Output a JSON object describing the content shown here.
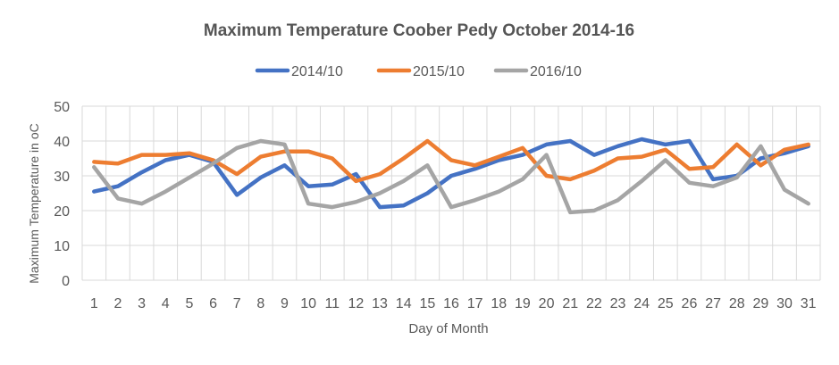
{
  "chart_data": {
    "type": "line",
    "title": "Maximum Temperature Coober Pedy October 2014-16",
    "xlabel": "Day of Month",
    "ylabel": "Maximum Temperature in oC",
    "ylim": [
      0,
      50
    ],
    "yticks": [
      0,
      10,
      20,
      30,
      40,
      50
    ],
    "grid": true,
    "legend": "top",
    "categories": [
      "1",
      "2",
      "3",
      "4",
      "5",
      "6",
      "7",
      "8",
      "9",
      "10",
      "11",
      "12",
      "13",
      "14",
      "15",
      "16",
      "17",
      "18",
      "19",
      "20",
      "21",
      "22",
      "23",
      "24",
      "25",
      "26",
      "27",
      "28",
      "29",
      "30",
      "31"
    ],
    "series": [
      {
        "name": "2014/10",
        "color": "#4472C4",
        "values": [
          25.5,
          27,
          31,
          34.5,
          36,
          34,
          24.5,
          29.5,
          33,
          27,
          27.5,
          30.5,
          21,
          21.5,
          25,
          30,
          32,
          34.5,
          36,
          39,
          40,
          36,
          38.5,
          40.5,
          39,
          40,
          29,
          30,
          35,
          36.5,
          38.5
        ]
      },
      {
        "name": "2015/10",
        "color": "#ED7D31",
        "values": [
          34,
          33.5,
          36,
          36,
          36.5,
          34.5,
          30.5,
          35.5,
          37,
          37,
          35,
          28.5,
          30.5,
          35,
          40,
          34.5,
          33,
          35.5,
          38,
          30,
          29,
          31.5,
          35,
          35.5,
          37.5,
          32,
          32.5,
          39,
          33,
          37.5,
          39
        ]
      },
      {
        "name": "2016/10",
        "color": "#A5A5A5",
        "values": [
          32.5,
          23.5,
          22,
          25.5,
          29.5,
          33.5,
          38,
          40,
          39,
          22,
          21,
          22.5,
          25,
          28.5,
          33,
          21,
          23,
          25.5,
          29,
          36,
          19.5,
          20,
          23,
          28.5,
          34.5,
          28,
          27,
          29.5,
          38.5,
          26,
          22
        ]
      }
    ]
  }
}
